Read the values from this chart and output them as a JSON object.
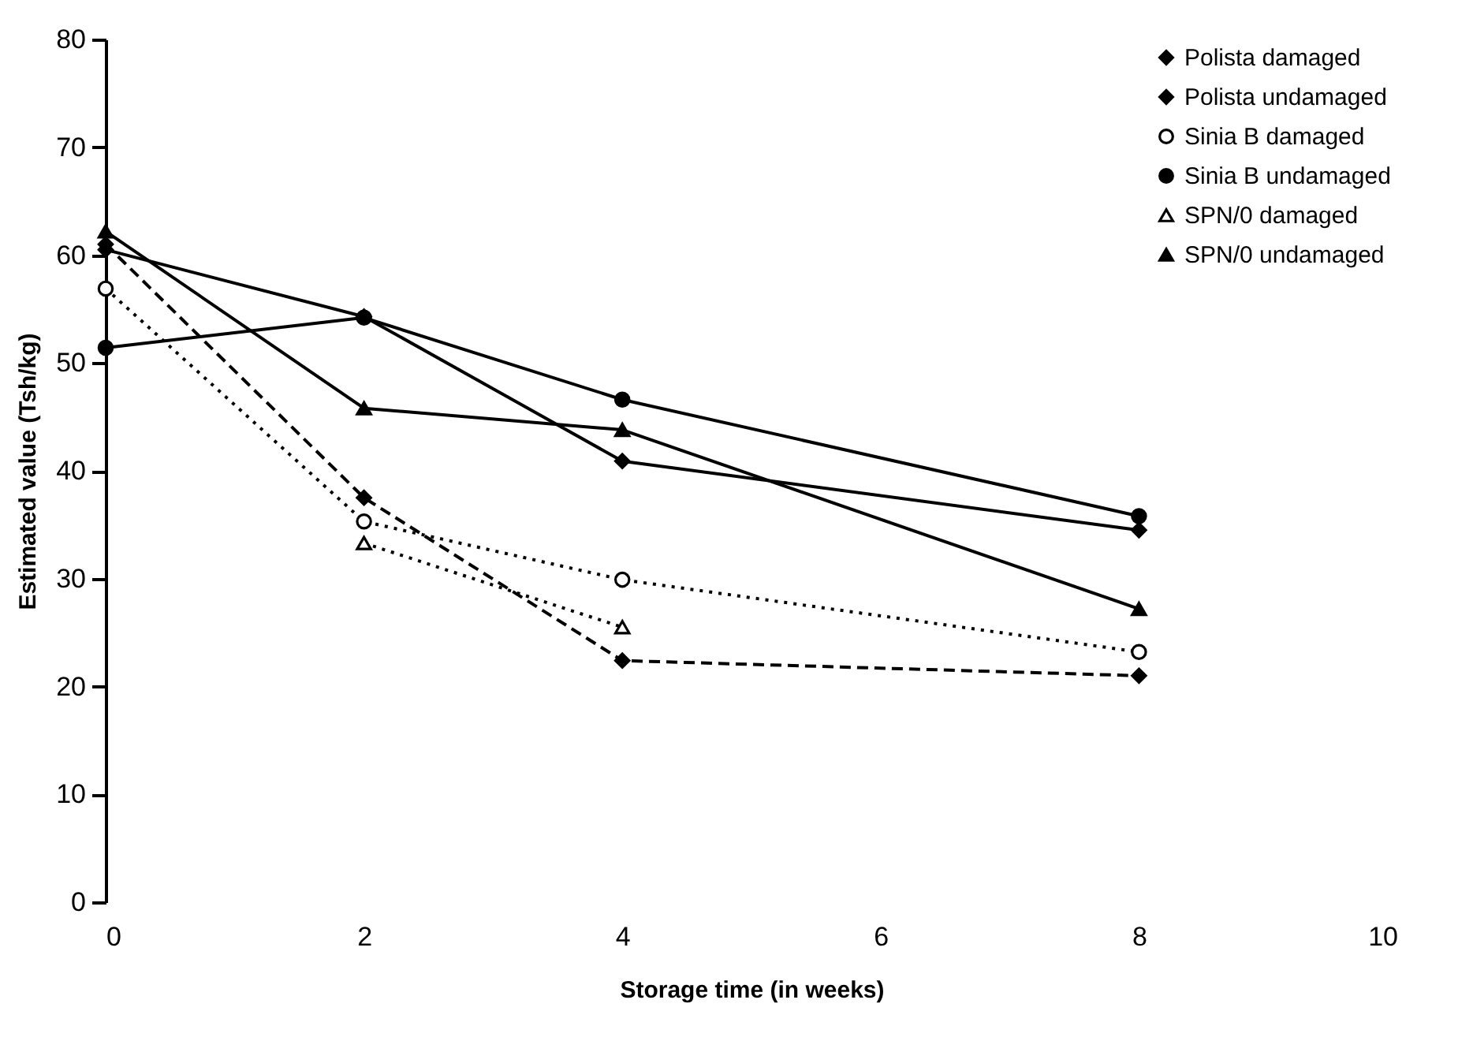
{
  "chart_data": {
    "type": "line",
    "xlabel": "Storage time (in weeks)",
    "ylabel": "Estimated value (Tsh/kg)",
    "x": [
      0,
      2,
      4,
      8
    ],
    "xlim": [
      0,
      10
    ],
    "xticks": [
      0,
      2,
      4,
      6,
      8,
      10
    ],
    "ylim": [
      0,
      80
    ],
    "yticks": [
      0,
      10,
      20,
      30,
      40,
      50,
      60,
      70,
      80
    ],
    "grid": false,
    "legend": "top right",
    "series": [
      {
        "name": "Polista damaged",
        "color": "#000000",
        "marker": "diamond",
        "line_style": "dashed",
        "values": [
          61,
          37.5,
          22.4,
          21.0
        ]
      },
      {
        "name": "Polista undamaged",
        "color": "#000000",
        "marker": "diamond",
        "line_style": "solid",
        "values": [
          60.5,
          54.3,
          40.9,
          34.5
        ]
      },
      {
        "name": "Sinia B damaged",
        "color": "#000000",
        "marker": "circle",
        "line_style": "dotted",
        "values": [
          56.9,
          35.3,
          29.9,
          23.2
        ]
      },
      {
        "name": "Sinia B undamaged",
        "color": "#000000",
        "marker": "circle",
        "line_style": "solid",
        "values": [
          51.4,
          54.2,
          46.6,
          35.8
        ]
      },
      {
        "name": "SPN/0 damaged",
        "color": "#000000",
        "marker": "triangle",
        "line_style": "dotted",
        "values": [
          null,
          33.3,
          25.5,
          null
        ]
      },
      {
        "name": "SPN/0 undamaged",
        "color": "#000000",
        "marker": "triangle",
        "line_style": "solid",
        "values": [
          62.2,
          45.8,
          43.8,
          27.2
        ]
      }
    ]
  }
}
